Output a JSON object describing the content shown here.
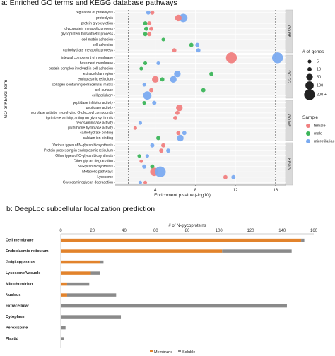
{
  "panel_a": {
    "title": "a: Enriched GO terms and KEGG database pathways",
    "ylabel": "GO or KEGG Term",
    "xlabel": "Enrichment p value (-log10)",
    "x_ticks": [
      "4",
      "8",
      "12",
      "16"
    ],
    "legend_size_title": "# of genes",
    "legend_size_labels": [
      "5",
      "10",
      "50",
      "100",
      "200 +"
    ],
    "legend_color_title": "Sample",
    "legend_color_labels": [
      "female",
      "male",
      "microfilariae"
    ]
  },
  "panel_b": {
    "title": "b: DeepLoc subcellular localization prediction",
    "xlabel": "# of N-glycoproteins",
    "x_ticks": [
      "0",
      "20",
      "40",
      "60",
      "80",
      "100",
      "120",
      "140",
      "160"
    ],
    "legend_labels": [
      "Membrane",
      "Soluble"
    ]
  },
  "colors": {
    "female": "#f08080",
    "male": "#3cb55a",
    "microfilariae": "#7aaaf0",
    "membrane": "#e2832c",
    "soluble": "#8a8a8a",
    "strip": "#d9d9d9",
    "panel_bg": "#f4f4f4"
  },
  "chart_data": [
    {
      "type": "scatter",
      "xlabel": "Enrichment p value (-log10)",
      "ylabel": "GO or KEGG Term",
      "xlim": [
        0,
        17
      ],
      "reference_lines_x": [
        1.3,
        16
      ],
      "facets": [
        {
          "label": "GO:BP",
          "terms": [
            "regulation of proteolysis",
            "proteolysis",
            "protein glycosylation",
            "glycoprotein metabolic process",
            "glycoprotein biosynthetic process",
            "cell-matrix adhesion",
            "cell adhesion",
            "carbohydrate metabolic process"
          ],
          "points": [
            {
              "term": "regulation of proteolysis",
              "sample": "microfilariae",
              "x": 3.3,
              "genes": 10
            },
            {
              "term": "regulation of proteolysis",
              "sample": "female",
              "x": 3.7,
              "genes": 10
            },
            {
              "term": "proteolysis",
              "sample": "microfilariae",
              "x": 6.8,
              "genes": 100
            },
            {
              "term": "proteolysis",
              "sample": "female",
              "x": 6.3,
              "genes": 50
            },
            {
              "term": "protein glycosylation",
              "sample": "male",
              "x": 3.0,
              "genes": 10
            },
            {
              "term": "protein glycosylation",
              "sample": "female",
              "x": 3.4,
              "genes": 10
            },
            {
              "term": "glycoprotein metabolic process",
              "sample": "male",
              "x": 3.1,
              "genes": 10
            },
            {
              "term": "glycoprotein metabolic process",
              "sample": "female",
              "x": 3.6,
              "genes": 10
            },
            {
              "term": "glycoprotein biosynthetic process",
              "sample": "male",
              "x": 3.0,
              "genes": 10
            },
            {
              "term": "glycoprotein biosynthetic process",
              "sample": "female",
              "x": 3.4,
              "genes": 10
            },
            {
              "term": "cell-matrix adhesion",
              "sample": "male",
              "x": 4.8,
              "genes": 5
            },
            {
              "term": "cell adhesion",
              "sample": "male",
              "x": 7.6,
              "genes": 10
            },
            {
              "term": "cell adhesion",
              "sample": "microfilariae",
              "x": 8.2,
              "genes": 10
            },
            {
              "term": "carbohydrate metabolic process",
              "sample": "female",
              "x": 5.9,
              "genes": 10
            },
            {
              "term": "carbohydrate metabolic process",
              "sample": "microfilariae",
              "x": 8.3,
              "genes": 10
            }
          ]
        },
        {
          "label": "GO:CC",
          "terms": [
            "integral component of membrane",
            "basement membrane",
            "protein complex involved in cell adhesion",
            "extracellular region",
            "endoplasmic reticulum",
            "collagen-containing extracellular matrix",
            "cell surface",
            "cell periphery"
          ],
          "points": [
            {
              "term": "integral component of membrane",
              "sample": "female",
              "x": 11.6,
              "genes": 200
            },
            {
              "term": "integral component of membrane",
              "sample": "microfilariae",
              "x": 16.2,
              "genes": 200
            },
            {
              "term": "basement membrane",
              "sample": "male",
              "x": 3.0,
              "genes": 5
            },
            {
              "term": "basement membrane",
              "sample": "microfilariae",
              "x": 4.3,
              "genes": 5
            },
            {
              "term": "protein complex involved in cell adhesion",
              "sample": "male",
              "x": 2.6,
              "genes": 5
            },
            {
              "term": "extracellular region",
              "sample": "microfilariae",
              "x": 6.2,
              "genes": 50
            },
            {
              "term": "extracellular region",
              "sample": "male",
              "x": 9.6,
              "genes": 10
            },
            {
              "term": "endoplasmic reticulum",
              "sample": "female",
              "x": 4.0,
              "genes": 50
            },
            {
              "term": "endoplasmic reticulum",
              "sample": "male",
              "x": 4.7,
              "genes": 10
            },
            {
              "term": "endoplasmic reticulum",
              "sample": "microfilariae",
              "x": 5.8,
              "genes": 50
            },
            {
              "term": "collagen-containing extracellular matrix",
              "sample": "microfilariae",
              "x": 2.9,
              "genes": 5
            },
            {
              "term": "cell surface",
              "sample": "female",
              "x": 3.6,
              "genes": 10
            },
            {
              "term": "cell surface",
              "sample": "male",
              "x": 8.8,
              "genes": 10
            },
            {
              "term": "cell periphery",
              "sample": "microfilariae",
              "x": 3.2,
              "genes": 100
            }
          ]
        },
        {
          "label": "GO:MF",
          "terms": [
            "peptidase inhibitor activity",
            "peptidase activity",
            "hydrolase activity, hydrolyzing O-glycosyl compounds",
            "hydrolase activity, acting on glycosyl bonds",
            "hexosaminidase activity",
            "glutathione hydrolase activity",
            "carbohydrate binding",
            "calcium ion binding"
          ],
          "points": [
            {
              "term": "peptidase inhibitor activity",
              "sample": "male",
              "x": 2.9,
              "genes": 5
            },
            {
              "term": "peptidase inhibitor activity",
              "sample": "microfilariae",
              "x": 3.9,
              "genes": 10
            },
            {
              "term": "peptidase activity",
              "sample": "female",
              "x": 6.4,
              "genes": 50
            },
            {
              "term": "hydrolase activity, hydrolyzing O-glycosyl compounds",
              "sample": "female",
              "x": 6.2,
              "genes": 10
            },
            {
              "term": "hydrolase activity, acting on glycosyl bonds",
              "sample": "female",
              "x": 6.0,
              "genes": 10
            },
            {
              "term": "hexosaminidase activity",
              "sample": "microfilariae",
              "x": 2.5,
              "genes": 5
            },
            {
              "term": "glutathione hydrolase activity",
              "sample": "female",
              "x": 2.0,
              "genes": 5
            },
            {
              "term": "carbohydrate binding",
              "sample": "female",
              "x": 6.3,
              "genes": 10
            },
            {
              "term": "carbohydrate binding",
              "sample": "microfilariae",
              "x": 6.9,
              "genes": 10
            },
            {
              "term": "calcium ion binding",
              "sample": "male",
              "x": 4.3,
              "genes": 10
            },
            {
              "term": "calcium ion binding",
              "sample": "microfilariae",
              "x": 6.5,
              "genes": 50
            }
          ]
        },
        {
          "label": "KEGG",
          "terms": [
            "Various types of N-glycan biosynthesis",
            "Protein processing in endoplasmic reticulum",
            "Other types of O-glycan biosynthesis",
            "Other glycan degradation",
            "N-Glycan biosynthesis",
            "Metabolic pathways",
            "Lysosome",
            "Glycosaminoglycan degradation"
          ],
          "points": [
            {
              "term": "Various types of N-glycan biosynthesis",
              "sample": "microfilariae",
              "x": 3.7,
              "genes": 10
            },
            {
              "term": "Various types of N-glycan biosynthesis",
              "sample": "female",
              "x": 4.8,
              "genes": 10
            },
            {
              "term": "Protein processing in endoplasmic reticulum",
              "sample": "female",
              "x": 4.6,
              "genes": 10
            },
            {
              "term": "Protein processing in endoplasmic reticulum",
              "sample": "microfilariae",
              "x": 5.3,
              "genes": 10
            },
            {
              "term": "Other types of O-glycan biosynthesis",
              "sample": "male",
              "x": 2.4,
              "genes": 5
            },
            {
              "term": "Other types of O-glycan biosynthesis",
              "sample": "microfilariae",
              "x": 3.2,
              "genes": 5
            },
            {
              "term": "Other glycan degradation",
              "sample": "female",
              "x": 2.6,
              "genes": 5
            },
            {
              "term": "N-Glycan biosynthesis",
              "sample": "microfilariae",
              "x": 2.9,
              "genes": 10
            },
            {
              "term": "N-Glycan biosynthesis",
              "sample": "male",
              "x": 3.7,
              "genes": 10
            },
            {
              "term": "Metabolic pathways",
              "sample": "female",
              "x": 3.9,
              "genes": 100
            },
            {
              "term": "Metabolic pathways",
              "sample": "microfilariae",
              "x": 4.5,
              "genes": 200
            },
            {
              "term": "Lysosome",
              "sample": "female",
              "x": 11.0,
              "genes": 10
            },
            {
              "term": "Lysosome",
              "sample": "microfilariae",
              "x": 11.8,
              "genes": 10
            },
            {
              "term": "Glycosaminoglycan degradation",
              "sample": "microfilariae",
              "x": 2.5,
              "genes": 5
            },
            {
              "term": "Glycosaminoglycan degradation",
              "sample": "female",
              "x": 3.0,
              "genes": 5
            }
          ]
        }
      ]
    },
    {
      "type": "bar",
      "orientation": "horizontal",
      "stacked": true,
      "title": "b: DeepLoc subcellular localization prediction",
      "xlabel": "# of N-glycoproteins",
      "xlim": [
        0,
        160
      ],
      "categories": [
        "Cell membrane",
        "Endoplasmic reticulum",
        "Golgi apparatus",
        "Lysosome/Vacuole",
        "Mitochondrion",
        "Nucleus",
        "Extracellular",
        "Cytoplasm",
        "Peroxisome",
        "Plastid"
      ],
      "series": [
        {
          "name": "Membrane",
          "values": [
            152,
            102,
            25,
            19,
            4,
            4,
            0,
            0,
            0,
            0
          ]
        },
        {
          "name": "Soluble",
          "values": [
            2,
            44,
            2,
            6,
            14,
            31,
            143,
            38,
            3,
            2
          ]
        }
      ],
      "legend": "bottom-center"
    }
  ]
}
